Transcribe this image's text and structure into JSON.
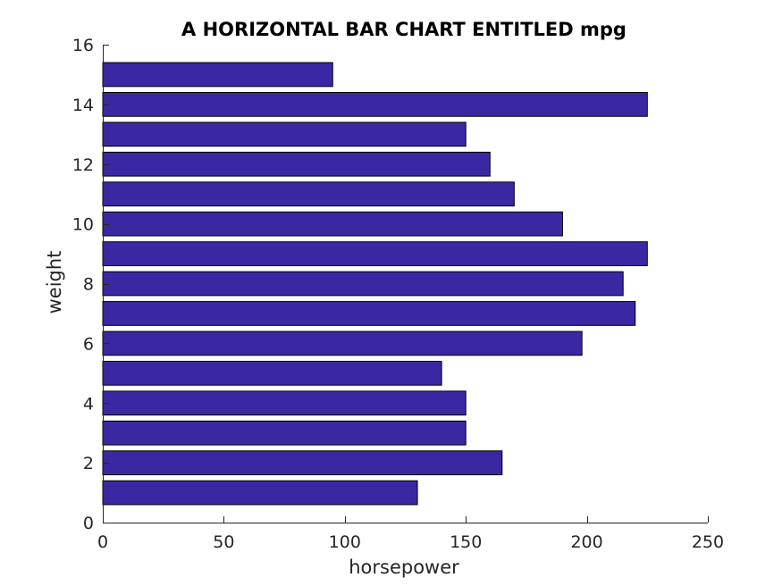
{
  "chart_data": {
    "type": "bar",
    "orientation": "horizontal",
    "title": "A HORIZONTAL BAR CHART ENTITLED mpg",
    "xlabel": "horsepower",
    "ylabel": "weight",
    "xlim": [
      0,
      250
    ],
    "ylim": [
      0,
      16
    ],
    "xticks": [
      0,
      50,
      100,
      150,
      200,
      250
    ],
    "yticks": [
      0,
      2,
      4,
      6,
      8,
      10,
      12,
      14,
      16
    ],
    "grid": false,
    "bar_color": "#3a28a3",
    "categories": [
      1,
      2,
      3,
      4,
      5,
      6,
      7,
      8,
      9,
      10,
      11,
      12,
      13,
      14,
      15
    ],
    "values": [
      130,
      165,
      150,
      150,
      140,
      198,
      220,
      215,
      225,
      190,
      170,
      160,
      150,
      225,
      95
    ]
  }
}
